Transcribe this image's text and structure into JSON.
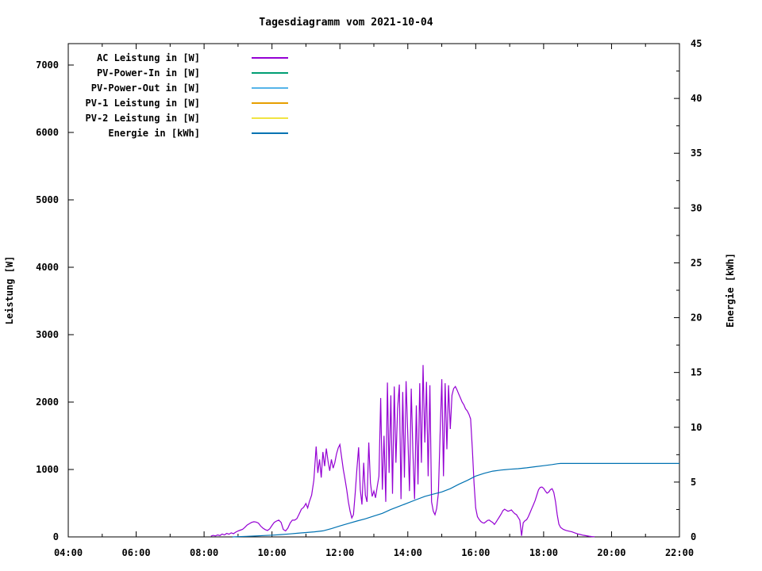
{
  "title": "Tagesdiagramm vom 2021-10-04",
  "chart_data": {
    "type": "line",
    "title": "Tagesdiagramm vom 2021-10-04",
    "grid": false,
    "legend_position": "top-left-inside",
    "x_axis": {
      "label": "",
      "tick_labels": [
        "04:00",
        "06:00",
        "08:00",
        "10:00",
        "12:00",
        "14:00",
        "16:00",
        "18:00",
        "20:00",
        "22:00"
      ],
      "range_hours": [
        4,
        22
      ],
      "major_step_hours": 2,
      "minor_step_hours": 1
    },
    "y_left": {
      "label": "Leistung [W]",
      "tick_values": [
        0,
        1000,
        2000,
        3000,
        4000,
        5000,
        6000,
        7000
      ],
      "range": [
        0,
        7320
      ]
    },
    "y_right": {
      "label": "Energie [kWh]",
      "tick_values": [
        0,
        5,
        10,
        15,
        20,
        25,
        30,
        35,
        40,
        45
      ],
      "minor_step": 2.5,
      "range": [
        0,
        45
      ]
    },
    "series": [
      {
        "name": "AC Leistung in [W]",
        "color": "#9400d3",
        "axis": "left",
        "points": [
          [
            "08:12",
            10
          ],
          [
            "08:16",
            22
          ],
          [
            "08:20",
            14
          ],
          [
            "08:24",
            30
          ],
          [
            "08:28",
            20
          ],
          [
            "08:32",
            42
          ],
          [
            "08:36",
            30
          ],
          [
            "08:40",
            52
          ],
          [
            "08:44",
            40
          ],
          [
            "08:48",
            60
          ],
          [
            "08:52",
            48
          ],
          [
            "08:56",
            70
          ],
          [
            "09:00",
            88
          ],
          [
            "09:04",
            100
          ],
          [
            "09:08",
            112
          ],
          [
            "09:12",
            140
          ],
          [
            "09:16",
            175
          ],
          [
            "09:20",
            195
          ],
          [
            "09:24",
            215
          ],
          [
            "09:28",
            225
          ],
          [
            "09:32",
            220
          ],
          [
            "09:36",
            205
          ],
          [
            "09:40",
            160
          ],
          [
            "09:44",
            130
          ],
          [
            "09:48",
            108
          ],
          [
            "09:52",
            95
          ],
          [
            "09:56",
            120
          ],
          [
            "10:00",
            170
          ],
          [
            "10:04",
            215
          ],
          [
            "10:08",
            235
          ],
          [
            "10:12",
            250
          ],
          [
            "10:16",
            215
          ],
          [
            "10:20",
            110
          ],
          [
            "10:24",
            88
          ],
          [
            "10:28",
            130
          ],
          [
            "10:32",
            205
          ],
          [
            "10:36",
            250
          ],
          [
            "10:40",
            248
          ],
          [
            "10:44",
            270
          ],
          [
            "10:48",
            340
          ],
          [
            "10:52",
            410
          ],
          [
            "10:56",
            440
          ],
          [
            "11:00",
            495
          ],
          [
            "11:03",
            430
          ],
          [
            "11:06",
            520
          ],
          [
            "11:10",
            620
          ],
          [
            "11:14",
            840
          ],
          [
            "11:18",
            1340
          ],
          [
            "11:21",
            950
          ],
          [
            "11:24",
            1150
          ],
          [
            "11:27",
            880
          ],
          [
            "11:30",
            1260
          ],
          [
            "11:33",
            1050
          ],
          [
            "11:36",
            1310
          ],
          [
            "11:39",
            1120
          ],
          [
            "11:42",
            980
          ],
          [
            "11:45",
            1150
          ],
          [
            "11:48",
            1020
          ],
          [
            "11:51",
            1100
          ],
          [
            "11:54",
            1230
          ],
          [
            "11:57",
            1320
          ],
          [
            "12:00",
            1370
          ],
          [
            "12:03",
            1180
          ],
          [
            "12:06",
            1000
          ],
          [
            "12:09",
            860
          ],
          [
            "12:12",
            700
          ],
          [
            "12:15",
            520
          ],
          [
            "12:18",
            380
          ],
          [
            "12:21",
            280
          ],
          [
            "12:24",
            330
          ],
          [
            "12:27",
            650
          ],
          [
            "12:30",
            1000
          ],
          [
            "12:33",
            1330
          ],
          [
            "12:36",
            700
          ],
          [
            "12:39",
            480
          ],
          [
            "12:42",
            1100
          ],
          [
            "12:45",
            620
          ],
          [
            "12:48",
            520
          ],
          [
            "12:51",
            1400
          ],
          [
            "12:54",
            800
          ],
          [
            "12:57",
            600
          ],
          [
            "13:00",
            680
          ],
          [
            "13:03",
            580
          ],
          [
            "13:06",
            750
          ],
          [
            "13:09",
            900
          ],
          [
            "13:12",
            2060
          ],
          [
            "13:15",
            700
          ],
          [
            "13:18",
            1500
          ],
          [
            "13:21",
            520
          ],
          [
            "13:24",
            2290
          ],
          [
            "13:27",
            950
          ],
          [
            "13:30",
            2100
          ],
          [
            "13:33",
            640
          ],
          [
            "13:36",
            2230
          ],
          [
            "13:39",
            1100
          ],
          [
            "13:42",
            1900
          ],
          [
            "13:45",
            2260
          ],
          [
            "13:48",
            560
          ],
          [
            "13:51",
            2150
          ],
          [
            "13:54",
            880
          ],
          [
            "13:57",
            2310
          ],
          [
            "14:00",
            1500
          ],
          [
            "14:03",
            680
          ],
          [
            "14:06",
            2200
          ],
          [
            "14:09",
            1250
          ],
          [
            "14:12",
            560
          ],
          [
            "14:15",
            1950
          ],
          [
            "14:18",
            780
          ],
          [
            "14:21",
            2280
          ],
          [
            "14:24",
            1100
          ],
          [
            "14:27",
            2550
          ],
          [
            "14:30",
            1400
          ],
          [
            "14:33",
            2300
          ],
          [
            "14:36",
            900
          ],
          [
            "14:39",
            2250
          ],
          [
            "14:42",
            520
          ],
          [
            "14:45",
            380
          ],
          [
            "14:48",
            330
          ],
          [
            "14:51",
            420
          ],
          [
            "14:54",
            650
          ],
          [
            "14:57",
            1500
          ],
          [
            "15:00",
            2340
          ],
          [
            "15:03",
            900
          ],
          [
            "15:06",
            2280
          ],
          [
            "15:09",
            1300
          ],
          [
            "15:12",
            2250
          ],
          [
            "15:15",
            1600
          ],
          [
            "15:18",
            2100
          ],
          [
            "15:21",
            2200
          ],
          [
            "15:24",
            2230
          ],
          [
            "15:27",
            2180
          ],
          [
            "15:30",
            2120
          ],
          [
            "15:33",
            2060
          ],
          [
            "15:36",
            2000
          ],
          [
            "15:39",
            1960
          ],
          [
            "15:42",
            1900
          ],
          [
            "15:45",
            1870
          ],
          [
            "15:48",
            1820
          ],
          [
            "15:51",
            1750
          ],
          [
            "15:54",
            1300
          ],
          [
            "15:57",
            800
          ],
          [
            "16:00",
            430
          ],
          [
            "16:03",
            300
          ],
          [
            "16:06",
            260
          ],
          [
            "16:09",
            230
          ],
          [
            "16:12",
            210
          ],
          [
            "16:15",
            205
          ],
          [
            "16:18",
            225
          ],
          [
            "16:21",
            245
          ],
          [
            "16:24",
            250
          ],
          [
            "16:27",
            230
          ],
          [
            "16:30",
            215
          ],
          [
            "16:33",
            185
          ],
          [
            "16:36",
            220
          ],
          [
            "16:39",
            260
          ],
          [
            "16:42",
            300
          ],
          [
            "16:45",
            340
          ],
          [
            "16:48",
            390
          ],
          [
            "16:51",
            410
          ],
          [
            "16:54",
            395
          ],
          [
            "16:57",
            380
          ],
          [
            "17:00",
            390
          ],
          [
            "17:03",
            400
          ],
          [
            "17:06",
            370
          ],
          [
            "17:09",
            345
          ],
          [
            "17:12",
            330
          ],
          [
            "17:15",
            290
          ],
          [
            "17:18",
            250
          ],
          [
            "17:21",
            15
          ],
          [
            "17:24",
            210
          ],
          [
            "17:27",
            240
          ],
          [
            "17:30",
            255
          ],
          [
            "17:33",
            300
          ],
          [
            "17:36",
            360
          ],
          [
            "17:39",
            420
          ],
          [
            "17:42",
            480
          ],
          [
            "17:45",
            540
          ],
          [
            "17:48",
            620
          ],
          [
            "17:51",
            700
          ],
          [
            "17:54",
            735
          ],
          [
            "17:57",
            740
          ],
          [
            "18:00",
            720
          ],
          [
            "18:03",
            680
          ],
          [
            "18:06",
            650
          ],
          [
            "18:09",
            665
          ],
          [
            "18:12",
            700
          ],
          [
            "18:15",
            715
          ],
          [
            "18:18",
            660
          ],
          [
            "18:21",
            520
          ],
          [
            "18:24",
            330
          ],
          [
            "18:27",
            190
          ],
          [
            "18:30",
            140
          ],
          [
            "18:35",
            110
          ],
          [
            "18:40",
            95
          ],
          [
            "18:45",
            85
          ],
          [
            "18:50",
            75
          ],
          [
            "18:55",
            60
          ],
          [
            "19:00",
            45
          ],
          [
            "19:05",
            35
          ],
          [
            "19:10",
            25
          ],
          [
            "19:15",
            18
          ],
          [
            "19:20",
            10
          ],
          [
            "19:25",
            5
          ],
          [
            "19:30",
            2
          ]
        ]
      },
      {
        "name": "PV-Power-In in [W]",
        "color": "#009e73",
        "axis": "left",
        "points": []
      },
      {
        "name": "PV-Power-Out in [W]",
        "color": "#56b4e9",
        "axis": "left",
        "points": []
      },
      {
        "name": "PV-1 Leistung in [W]",
        "color": "#e69f00",
        "axis": "left",
        "points": []
      },
      {
        "name": "PV-2 Leistung in [W]",
        "color": "#f0e442",
        "axis": "left",
        "points": []
      },
      {
        "name": "Energie in [kWh]",
        "color": "#0072b2",
        "axis": "right",
        "points": [
          [
            "08:50",
            0.0
          ],
          [
            "09:00",
            0.02
          ],
          [
            "09:15",
            0.05
          ],
          [
            "09:30",
            0.08
          ],
          [
            "09:45",
            0.12
          ],
          [
            "10:00",
            0.16
          ],
          [
            "10:15",
            0.21
          ],
          [
            "10:30",
            0.27
          ],
          [
            "10:45",
            0.33
          ],
          [
            "11:00",
            0.4
          ],
          [
            "11:15",
            0.46
          ],
          [
            "11:30",
            0.55
          ],
          [
            "11:45",
            0.75
          ],
          [
            "12:00",
            1.0
          ],
          [
            "12:15",
            1.22
          ],
          [
            "12:30",
            1.45
          ],
          [
            "12:45",
            1.65
          ],
          [
            "13:00",
            1.9
          ],
          [
            "13:15",
            2.15
          ],
          [
            "13:30",
            2.5
          ],
          [
            "13:45",
            2.8
          ],
          [
            "14:00",
            3.1
          ],
          [
            "14:15",
            3.4
          ],
          [
            "14:30",
            3.7
          ],
          [
            "14:45",
            3.9
          ],
          [
            "15:00",
            4.1
          ],
          [
            "15:15",
            4.4
          ],
          [
            "15:30",
            4.8
          ],
          [
            "15:45",
            5.15
          ],
          [
            "16:00",
            5.55
          ],
          [
            "16:15",
            5.8
          ],
          [
            "16:30",
            6.0
          ],
          [
            "16:45",
            6.1
          ],
          [
            "17:00",
            6.17
          ],
          [
            "17:15",
            6.22
          ],
          [
            "17:30",
            6.3
          ],
          [
            "17:45",
            6.4
          ],
          [
            "18:00",
            6.5
          ],
          [
            "18:15",
            6.6
          ],
          [
            "18:25",
            6.68
          ],
          [
            "18:30",
            6.7
          ],
          [
            "19:00",
            6.7
          ],
          [
            "20:00",
            6.7
          ],
          [
            "21:00",
            6.7
          ],
          [
            "22:00",
            6.7
          ]
        ]
      }
    ]
  }
}
